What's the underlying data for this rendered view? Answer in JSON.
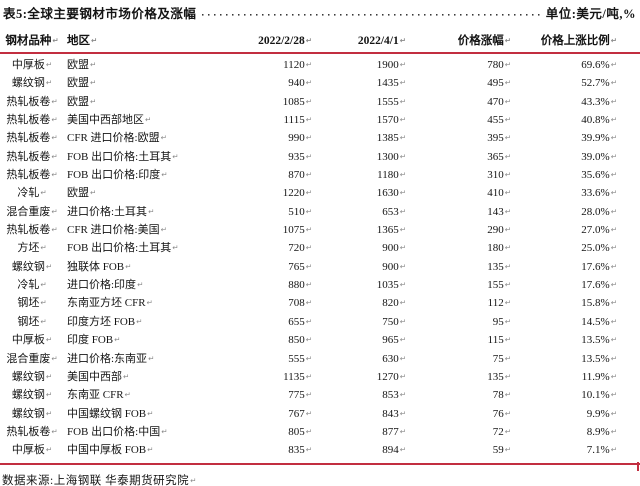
{
  "page": {
    "title": "表5:全球主要钢材市场价格及涨幅",
    "unit_label": "单位:美元/吨,%",
    "footer": "数据来源:上海钢联 华泰期货研究院",
    "return_mark": "↵"
  },
  "colors": {
    "rule_red": "#c22e40",
    "text": "#141414",
    "mark_gray": "#8a8a8a"
  },
  "table": {
    "columns": [
      "钢材品种",
      "地区",
      "2022/2/28",
      "2022/4/1",
      "价格涨幅",
      "价格上涨比例"
    ],
    "rows": [
      [
        "中厚板",
        "欧盟",
        "1120",
        "1900",
        "780",
        "69.6%"
      ],
      [
        "螺纹钢",
        "欧盟",
        "940",
        "1435",
        "495",
        "52.7%"
      ],
      [
        "热轧板卷",
        "欧盟",
        "1085",
        "1555",
        "470",
        "43.3%"
      ],
      [
        "热轧板卷",
        "美国中西部地区",
        "1115",
        "1570",
        "455",
        "40.8%"
      ],
      [
        "热轧板卷",
        "CFR 进口价格:欧盟",
        "990",
        "1385",
        "395",
        "39.9%"
      ],
      [
        "热轧板卷",
        "FOB 出口价格:土耳其",
        "935",
        "1300",
        "365",
        "39.0%"
      ],
      [
        "热轧板卷",
        "FOB 出口价格:印度",
        "870",
        "1180",
        "310",
        "35.6%"
      ],
      [
        "冷轧",
        "欧盟",
        "1220",
        "1630",
        "410",
        "33.6%"
      ],
      [
        "混合重废",
        "进口价格:土耳其",
        "510",
        "653",
        "143",
        "28.0%"
      ],
      [
        "热轧板卷",
        "CFR 进口价格:美国",
        "1075",
        "1365",
        "290",
        "27.0%"
      ],
      [
        "方坯",
        "FOB 出口价格:土耳其",
        "720",
        "900",
        "180",
        "25.0%"
      ],
      [
        "螺纹钢",
        "独联体 FOB",
        "765",
        "900",
        "135",
        "17.6%"
      ],
      [
        "冷轧",
        "进口价格:印度",
        "880",
        "1035",
        "155",
        "17.6%"
      ],
      [
        "钢坯",
        "东南亚方坯 CFR",
        "708",
        "820",
        "112",
        "15.8%"
      ],
      [
        "钢坯",
        "印度方坯 FOB",
        "655",
        "750",
        "95",
        "14.5%"
      ],
      [
        "中厚板",
        "印度 FOB",
        "850",
        "965",
        "115",
        "13.5%"
      ],
      [
        "混合重废",
        "进口价格:东南亚",
        "555",
        "630",
        "75",
        "13.5%"
      ],
      [
        "螺纹钢",
        "美国中西部",
        "1135",
        "1270",
        "135",
        "11.9%"
      ],
      [
        "螺纹钢",
        "东南亚 CFR",
        "775",
        "853",
        "78",
        "10.1%"
      ],
      [
        "螺纹钢",
        "中国螺纹钢 FOB",
        "767",
        "843",
        "76",
        "9.9%"
      ],
      [
        "热轧板卷",
        "FOB 出口价格:中国",
        "805",
        "877",
        "72",
        "8.9%"
      ],
      [
        "中厚板",
        "中国中厚板 FOB",
        "835",
        "894",
        "59",
        "7.1%"
      ]
    ]
  }
}
